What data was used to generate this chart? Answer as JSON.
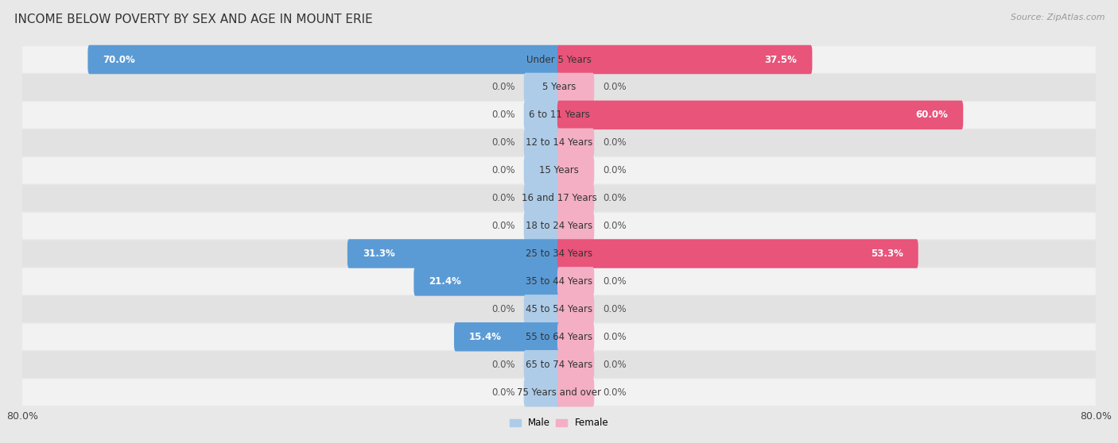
{
  "title": "INCOME BELOW POVERTY BY SEX AND AGE IN MOUNT ERIE",
  "source": "Source: ZipAtlas.com",
  "categories": [
    "Under 5 Years",
    "5 Years",
    "6 to 11 Years",
    "12 to 14 Years",
    "15 Years",
    "16 and 17 Years",
    "18 to 24 Years",
    "25 to 34 Years",
    "35 to 44 Years",
    "45 to 54 Years",
    "55 to 64 Years",
    "65 to 74 Years",
    "75 Years and over"
  ],
  "male_values": [
    70.0,
    0.0,
    0.0,
    0.0,
    0.0,
    0.0,
    0.0,
    31.3,
    21.4,
    0.0,
    15.4,
    0.0,
    0.0
  ],
  "female_values": [
    37.5,
    0.0,
    60.0,
    0.0,
    0.0,
    0.0,
    0.0,
    53.3,
    0.0,
    0.0,
    0.0,
    0.0,
    0.0
  ],
  "male_color_large": "#5b9bd5",
  "male_color_small": "#aecce8",
  "female_color_large": "#e8547a",
  "female_color_small": "#f4afc5",
  "male_label": "Male",
  "female_label": "Female",
  "xlim": 80.0,
  "bg_color": "#e8e8e8",
  "row_odd_color": "#f2f2f2",
  "row_even_color": "#e2e2e2",
  "title_fontsize": 11,
  "label_fontsize": 8.5,
  "tick_fontsize": 9,
  "source_fontsize": 8,
  "zero_stub": 5.0,
  "cat_label_fontsize": 8.5
}
